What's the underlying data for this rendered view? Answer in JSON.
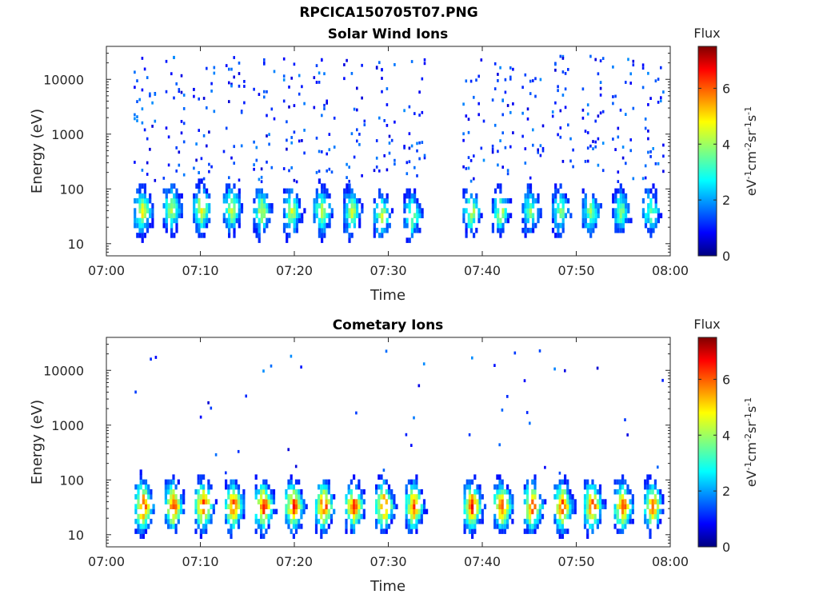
{
  "figure": {
    "title": "RPCICA150705T07.PNG"
  },
  "colors": {
    "colormap": [
      "#00007f",
      "#0000ff",
      "#007fff",
      "#00ffff",
      "#7fff7f",
      "#ffff00",
      "#ff7f00",
      "#ff0000",
      "#7f0000"
    ],
    "axis": "#262626"
  },
  "chart_data": [
    {
      "type": "heatmap",
      "title": "Solar Wind Ions",
      "xlabel": "Time",
      "ylabel": "Energy (eV)",
      "yscale": "log",
      "ylim": [
        6,
        40000
      ],
      "xlim": [
        "07:00",
        "08:00"
      ],
      "x_ticks": [
        "07:00",
        "07:10",
        "07:20",
        "07:30",
        "07:40",
        "07:50",
        "08:00"
      ],
      "y_ticks": [
        "10",
        "100",
        "1000",
        "10000"
      ],
      "colorbar": {
        "title": "Flux",
        "label": "eV-1cm-2sr-1s-1",
        "ticks": [
          "0",
          "2",
          "4",
          "6"
        ],
        "range": [
          0,
          7.5
        ]
      },
      "data_gap": [
        "07:34.5",
        "07:38"
      ],
      "bursts": [
        {
          "t_min": 3.5,
          "peak_eV": 35,
          "peak_flux": 5.0
        },
        {
          "t_min": 6.6,
          "peak_eV": 40,
          "peak_flux": 4.6
        },
        {
          "t_min": 9.8,
          "peak_eV": 40,
          "peak_flux": 5.0
        },
        {
          "t_min": 13.0,
          "peak_eV": 40,
          "peak_flux": 4.8
        },
        {
          "t_min": 16.2,
          "peak_eV": 35,
          "peak_flux": 4.6
        },
        {
          "t_min": 19.4,
          "peak_eV": 35,
          "peak_flux": 4.6
        },
        {
          "t_min": 22.6,
          "peak_eV": 35,
          "peak_flux": 4.8
        },
        {
          "t_min": 25.8,
          "peak_eV": 35,
          "peak_flux": 4.6
        },
        {
          "t_min": 29.0,
          "peak_eV": 30,
          "peak_flux": 4.4
        },
        {
          "t_min": 32.2,
          "peak_eV": 30,
          "peak_flux": 4.2
        },
        {
          "t_min": 38.5,
          "peak_eV": 35,
          "peak_flux": 4.4
        },
        {
          "t_min": 41.6,
          "peak_eV": 35,
          "peak_flux": 4.4
        },
        {
          "t_min": 44.8,
          "peak_eV": 35,
          "peak_flux": 4.2
        },
        {
          "t_min": 48.0,
          "peak_eV": 35,
          "peak_flux": 4.2
        },
        {
          "t_min": 51.2,
          "peak_eV": 35,
          "peak_flux": 4.2
        },
        {
          "t_min": 54.4,
          "peak_eV": 35,
          "peak_flux": 4.0
        },
        {
          "t_min": 57.6,
          "peak_eV": 35,
          "peak_flux": 4.0
        }
      ]
    },
    {
      "type": "heatmap",
      "title": "Cometary Ions",
      "xlabel": "Time",
      "ylabel": "Energy (eV)",
      "yscale": "log",
      "ylim": [
        6,
        40000
      ],
      "xlim": [
        "07:00",
        "08:00"
      ],
      "x_ticks": [
        "07:00",
        "07:10",
        "07:20",
        "07:30",
        "07:40",
        "07:50",
        "08:00"
      ],
      "y_ticks": [
        "10",
        "100",
        "1000",
        "10000"
      ],
      "colorbar": {
        "title": "Flux",
        "label": "eV-1cm-2sr-1s-1",
        "ticks": [
          "0",
          "2",
          "4",
          "6"
        ],
        "range": [
          0,
          7.5
        ]
      },
      "data_gap": [
        "07:34.5",
        "07:38"
      ],
      "bursts": [
        {
          "t_min": 3.6,
          "peak_eV": 30,
          "peak_flux": 6.8
        },
        {
          "t_min": 6.8,
          "peak_eV": 30,
          "peak_flux": 6.6
        },
        {
          "t_min": 10.0,
          "peak_eV": 30,
          "peak_flux": 6.8
        },
        {
          "t_min": 13.2,
          "peak_eV": 30,
          "peak_flux": 6.6
        },
        {
          "t_min": 16.4,
          "peak_eV": 30,
          "peak_flux": 6.8
        },
        {
          "t_min": 19.6,
          "peak_eV": 30,
          "peak_flux": 6.6
        },
        {
          "t_min": 22.8,
          "peak_eV": 30,
          "peak_flux": 6.8
        },
        {
          "t_min": 26.0,
          "peak_eV": 30,
          "peak_flux": 6.6
        },
        {
          "t_min": 29.2,
          "peak_eV": 30,
          "peak_flux": 6.6
        },
        {
          "t_min": 32.4,
          "peak_eV": 30,
          "peak_flux": 6.4
        },
        {
          "t_min": 38.6,
          "peak_eV": 30,
          "peak_flux": 6.8
        },
        {
          "t_min": 41.8,
          "peak_eV": 30,
          "peak_flux": 6.6
        },
        {
          "t_min": 45.0,
          "peak_eV": 30,
          "peak_flux": 6.8
        },
        {
          "t_min": 48.2,
          "peak_eV": 30,
          "peak_flux": 6.6
        },
        {
          "t_min": 51.4,
          "peak_eV": 30,
          "peak_flux": 6.6
        },
        {
          "t_min": 54.6,
          "peak_eV": 30,
          "peak_flux": 6.6
        },
        {
          "t_min": 57.8,
          "peak_eV": 30,
          "peak_flux": 6.4
        }
      ]
    }
  ]
}
